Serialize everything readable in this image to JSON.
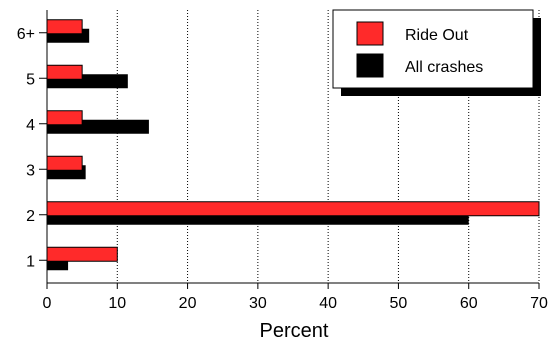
{
  "chart_data": {
    "type": "bar",
    "orientation": "horizontal",
    "categories": [
      "1",
      "2",
      "3",
      "4",
      "5",
      "6+"
    ],
    "series": [
      {
        "name": "Ride Out",
        "color": "#ff2a2a",
        "values": [
          10,
          70,
          5,
          5,
          5,
          5
        ]
      },
      {
        "name": "All crashes",
        "color": "#000000",
        "values": [
          3,
          60,
          5.5,
          14.5,
          11.5,
          6
        ]
      }
    ],
    "xlim": [
      0,
      70
    ],
    "xticks": [
      0,
      10,
      20,
      30,
      40,
      50,
      60,
      70
    ],
    "xlabel": "Percent",
    "ylabel": "",
    "grid": "vertical dotted",
    "legend_position": "top-right"
  }
}
